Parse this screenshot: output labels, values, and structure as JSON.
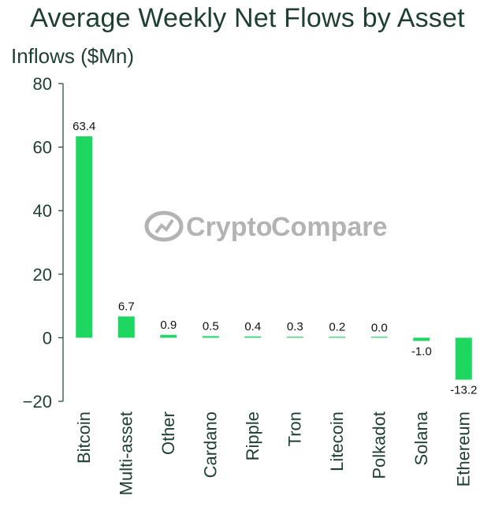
{
  "chart_data": {
    "type": "bar",
    "title": "Average Weekly Net Flows by Asset",
    "ylabel": "Inflows ($Mn)",
    "xlabel": "",
    "categories": [
      "Bitcoin",
      "Multi-asset",
      "Other",
      "Cardano",
      "Ripple",
      "Tron",
      "Litecoin",
      "Polkadot",
      "Solana",
      "Ethereum"
    ],
    "values": [
      63.4,
      6.7,
      0.9,
      0.5,
      0.4,
      0.3,
      0.2,
      0.0,
      -1.0,
      -13.2
    ],
    "value_labels": [
      "63.4",
      "6.7",
      "0.9",
      "0.5",
      "0.4",
      "0.3",
      "0.2",
      "0.0",
      "-1.0",
      "-13.2"
    ],
    "ylim": [
      -20,
      80
    ],
    "yticks": [
      80,
      60,
      40,
      20,
      0,
      -20
    ],
    "ytick_labels": [
      "80",
      "60",
      "40",
      "20",
      "0",
      "−20"
    ],
    "bar_color": "#1ed760",
    "grid": false,
    "legend": "none"
  },
  "watermark": {
    "text_a": "Crypto",
    "text_b": "Compare",
    "icon": "cryptocompare-logo-icon"
  }
}
